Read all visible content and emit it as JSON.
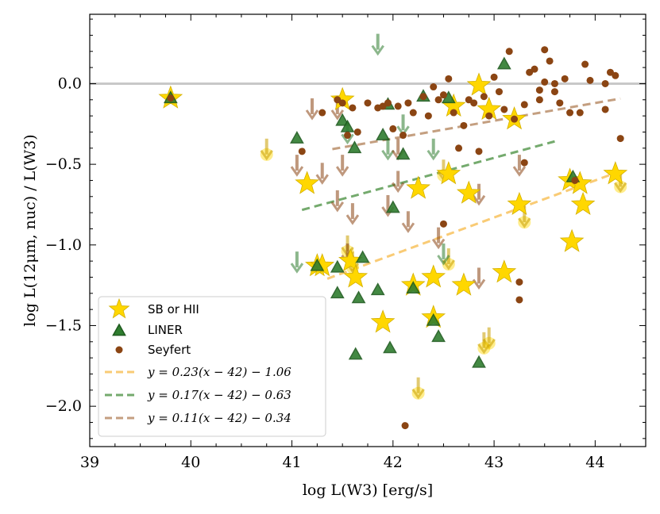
{
  "chart_data": {
    "type": "scatter",
    "xlabel": "log L(W3) [erg/s]",
    "ylabel": "log L(12μm, nuc) / L(W3)",
    "xlim": [
      39,
      44.5
    ],
    "ylim": [
      -2.25,
      0.43
    ],
    "xticks": [
      39,
      40,
      41,
      42,
      43,
      44
    ],
    "yticks": [
      -2.0,
      -1.5,
      -1.0,
      -0.5,
      0.0
    ],
    "xtick_labels": [
      "39",
      "40",
      "41",
      "42",
      "43",
      "44"
    ],
    "ytick_labels": [
      "−2.0",
      "−1.5",
      "−1.0",
      "−0.5",
      "0.0"
    ],
    "reference_line_y": 0.0,
    "colors": {
      "sb": "#ffd700",
      "sb_edge": "#d4b000",
      "liner": "#2f7d2f",
      "liner_edge": "#1e5a1e",
      "seyfert": "#8b4513",
      "sb_fit": "#f9cb75",
      "liner_fit": "#74aa6d",
      "seyfert_fit": "#c49f80",
      "refline": "#c8c8c8"
    },
    "series": [
      {
        "name": "SB or HII",
        "marker": "star",
        "points": [
          [
            39.8,
            -0.09
          ],
          [
            41.15,
            -0.62
          ],
          [
            41.25,
            -1.13
          ],
          [
            41.3,
            -1.13
          ],
          [
            41.5,
            -0.1
          ],
          [
            41.58,
            -1.1
          ],
          [
            41.63,
            -1.2
          ],
          [
            41.9,
            -1.48
          ],
          [
            42.2,
            -1.25
          ],
          [
            42.25,
            -0.65
          ],
          [
            42.4,
            -1.2
          ],
          [
            42.4,
            -1.45
          ],
          [
            42.55,
            -0.56
          ],
          [
            42.6,
            -0.14
          ],
          [
            42.7,
            -1.25
          ],
          [
            42.75,
            -0.68
          ],
          [
            42.85,
            -0.01
          ],
          [
            42.95,
            -0.16
          ],
          [
            43.1,
            -1.17
          ],
          [
            43.2,
            -0.22
          ],
          [
            43.25,
            -0.75
          ],
          [
            43.75,
            -0.6
          ],
          [
            43.77,
            -0.98
          ],
          [
            43.85,
            -0.62
          ],
          [
            43.88,
            -0.75
          ],
          [
            44.2,
            -0.56
          ]
        ]
      },
      {
        "name": "LINER",
        "marker": "triangle",
        "points": [
          [
            39.8,
            -0.09
          ],
          [
            41.05,
            -0.34
          ],
          [
            41.25,
            -1.13
          ],
          [
            41.45,
            -1.3
          ],
          [
            41.45,
            -1.14
          ],
          [
            41.5,
            -0.23
          ],
          [
            41.55,
            -0.27
          ],
          [
            41.62,
            -0.4
          ],
          [
            41.63,
            -1.68
          ],
          [
            41.66,
            -1.33
          ],
          [
            41.7,
            -1.08
          ],
          [
            41.85,
            -1.28
          ],
          [
            41.9,
            -0.32
          ],
          [
            41.95,
            -0.13
          ],
          [
            41.97,
            -1.64
          ],
          [
            42.0,
            -0.77
          ],
          [
            42.1,
            -0.44
          ],
          [
            42.2,
            -1.27
          ],
          [
            42.3,
            -0.08
          ],
          [
            42.4,
            -1.47
          ],
          [
            42.45,
            -1.57
          ],
          [
            42.55,
            -0.09
          ],
          [
            42.85,
            -1.73
          ],
          [
            43.1,
            0.12
          ],
          [
            43.78,
            -0.58
          ]
        ]
      },
      {
        "name": "Seyfert",
        "marker": "circle",
        "points": [
          [
            39.8,
            -0.09
          ],
          [
            41.1,
            -0.42
          ],
          [
            41.3,
            -0.18
          ],
          [
            41.45,
            -0.1
          ],
          [
            41.5,
            -0.12
          ],
          [
            41.55,
            -0.32
          ],
          [
            41.6,
            -0.15
          ],
          [
            41.65,
            -0.3
          ],
          [
            41.75,
            -0.12
          ],
          [
            41.85,
            -0.15
          ],
          [
            41.9,
            -0.14
          ],
          [
            41.95,
            -0.12
          ],
          [
            42.0,
            -0.28
          ],
          [
            42.05,
            -0.14
          ],
          [
            42.1,
            -0.32
          ],
          [
            42.15,
            -0.12
          ],
          [
            42.2,
            -0.18
          ],
          [
            42.3,
            -0.08
          ],
          [
            42.35,
            -0.2
          ],
          [
            42.4,
            -0.02
          ],
          [
            42.45,
            -0.1
          ],
          [
            42.5,
            -0.07
          ],
          [
            42.55,
            0.03
          ],
          [
            42.6,
            -0.18
          ],
          [
            42.65,
            -0.4
          ],
          [
            42.7,
            -0.26
          ],
          [
            42.75,
            -0.1
          ],
          [
            42.8,
            -0.12
          ],
          [
            42.85,
            -0.42
          ],
          [
            42.9,
            -0.08
          ],
          [
            42.95,
            -0.2
          ],
          [
            43.0,
            0.04
          ],
          [
            43.05,
            -0.05
          ],
          [
            43.1,
            -0.16
          ],
          [
            43.15,
            0.2
          ],
          [
            43.2,
            -0.22
          ],
          [
            43.25,
            -1.23
          ],
          [
            43.25,
            -1.34
          ],
          [
            43.3,
            -0.49
          ],
          [
            43.3,
            -0.13
          ],
          [
            43.35,
            0.07
          ],
          [
            43.4,
            0.09
          ],
          [
            43.45,
            -0.1
          ],
          [
            43.5,
            0.01
          ],
          [
            43.5,
            0.21
          ],
          [
            43.55,
            0.14
          ],
          [
            43.6,
            -0.05
          ],
          [
            43.6,
            0.0
          ],
          [
            43.65,
            -0.12
          ],
          [
            43.7,
            0.03
          ],
          [
            43.75,
            -0.18
          ],
          [
            43.8,
            -0.6
          ],
          [
            43.85,
            -0.18
          ],
          [
            43.9,
            0.12
          ],
          [
            43.95,
            0.02
          ],
          [
            44.1,
            -0.16
          ],
          [
            44.15,
            0.07
          ],
          [
            44.2,
            0.05
          ],
          [
            44.25,
            -0.34
          ],
          [
            42.5,
            -0.87
          ],
          [
            42.12,
            -2.12
          ],
          [
            44.1,
            0.0
          ],
          [
            43.45,
            -0.04
          ]
        ]
      }
    ],
    "upper_limits": {
      "description": "downward arrows marking upper limits",
      "sb": [
        [
          40.75,
          -0.4
        ],
        [
          41.55,
          -1.0
        ],
        [
          41.6,
          -1.1
        ],
        [
          42.25,
          -1.88
        ],
        [
          42.5,
          -0.53
        ],
        [
          42.55,
          -1.08
        ],
        [
          42.95,
          -1.57
        ],
        [
          42.9,
          -1.6
        ],
        [
          43.3,
          -0.82
        ],
        [
          44.25,
          -0.6
        ]
      ],
      "liner": [
        [
          41.05,
          -1.1
        ],
        [
          41.55,
          -0.3
        ],
        [
          41.95,
          -0.4
        ],
        [
          41.85,
          0.25
        ],
        [
          42.4,
          -0.4
        ],
        [
          42.5,
          -1.05
        ],
        [
          42.1,
          -0.25
        ]
      ],
      "seyfert": [
        [
          41.05,
          -0.5
        ],
        [
          41.2,
          -0.15
        ],
        [
          41.3,
          -0.55
        ],
        [
          41.45,
          -0.15
        ],
        [
          41.45,
          -0.72
        ],
        [
          41.5,
          -0.5
        ],
        [
          41.6,
          -0.8
        ],
        [
          41.55,
          -1.05
        ],
        [
          41.95,
          -0.75
        ],
        [
          42.05,
          -0.4
        ],
        [
          42.05,
          -0.6
        ],
        [
          42.15,
          -0.85
        ],
        [
          42.45,
          -0.95
        ],
        [
          42.85,
          -0.68
        ],
        [
          42.85,
          -1.2
        ],
        [
          43.25,
          -0.5
        ]
      ]
    },
    "fits": [
      {
        "name": "SB fit",
        "slope": 0.23,
        "intercept": -1.06,
        "x": [
          41.35,
          44.25
        ]
      },
      {
        "name": "LINER fit",
        "slope": 0.17,
        "intercept": -0.63,
        "x": [
          41.1,
          43.6
        ]
      },
      {
        "name": "Seyfert fit",
        "slope": 0.11,
        "intercept": -0.34,
        "x": [
          41.4,
          44.25
        ]
      }
    ],
    "legend": {
      "placement": "lower-left",
      "entries": [
        {
          "label": "SB or HII",
          "marker": "star"
        },
        {
          "label": "LINER",
          "marker": "triangle"
        },
        {
          "label": "Seyfert",
          "marker": "circle"
        },
        {
          "label": "y = 0.23(x − 42) − 1.06",
          "marker": "sb-line"
        },
        {
          "label": "y = 0.17(x − 42) − 0.63",
          "marker": "liner-line"
        },
        {
          "label": "y = 0.11(x − 42) − 0.34",
          "marker": "seyfert-line"
        }
      ]
    }
  }
}
